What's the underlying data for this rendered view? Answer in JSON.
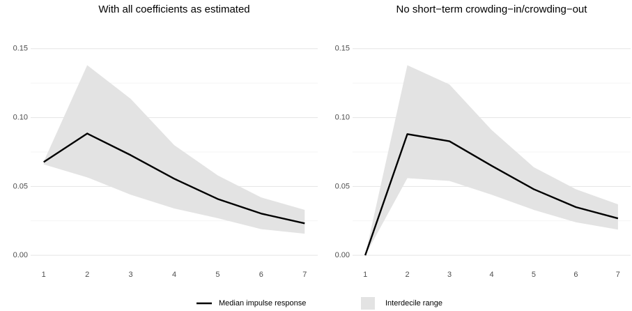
{
  "chart_data": [
    {
      "type": "band-line",
      "title": "With all coefficients as estimated",
      "x": [
        1,
        2,
        3,
        4,
        5,
        6,
        7
      ],
      "median": [
        0.0677,
        0.0884,
        0.0727,
        0.0556,
        0.0409,
        0.0303,
        0.0232
      ],
      "low": [
        0.066,
        0.0566,
        0.044,
        0.034,
        0.027,
        0.019,
        0.0157
      ],
      "high": [
        0.068,
        0.138,
        0.1136,
        0.08,
        0.058,
        0.042,
        0.033
      ],
      "xlim": [
        0.7,
        7.3
      ],
      "xticks": [
        1,
        2,
        3,
        4,
        5,
        6,
        7
      ],
      "ylim": [
        -0.007,
        0.16
      ],
      "yticks": [
        {
          "value": 0,
          "label": "0.00"
        },
        {
          "value": 0.05,
          "label": "0.05"
        },
        {
          "value": 0.1,
          "label": "0.10"
        },
        {
          "value": 0.15,
          "label": "0.15"
        }
      ],
      "minor_yticks": [
        0.025,
        0.075,
        0.125
      ],
      "grid": true
    },
    {
      "type": "band-line",
      "title": "No short−term crowding−in/crowding−out",
      "x": [
        1,
        2,
        3,
        4,
        5,
        6,
        7
      ],
      "median": [
        0,
        0.088,
        0.0828,
        0.065,
        0.048,
        0.035,
        0.0268
      ],
      "low": [
        0,
        0.056,
        0.054,
        0.044,
        0.033,
        0.024,
        0.0187
      ],
      "high": [
        0,
        0.138,
        0.124,
        0.091,
        0.064,
        0.048,
        0.037
      ],
      "xlim": [
        0.7,
        7.3
      ],
      "xticks": [
        1,
        2,
        3,
        4,
        5,
        6,
        7
      ],
      "ylim": [
        -0.007,
        0.16
      ],
      "yticks": [
        {
          "value": 0,
          "label": "0.00"
        },
        {
          "value": 0.05,
          "label": "0.05"
        },
        {
          "value": 0.1,
          "label": "0.10"
        },
        {
          "value": 0.15,
          "label": "0.15"
        }
      ],
      "minor_yticks": [
        0.025,
        0.075,
        0.125
      ],
      "grid": true
    }
  ],
  "legend": {
    "line": "Median impulse response",
    "line_color": "#000000",
    "band": "Interdecile range",
    "band_color": "#e3e3e3"
  }
}
